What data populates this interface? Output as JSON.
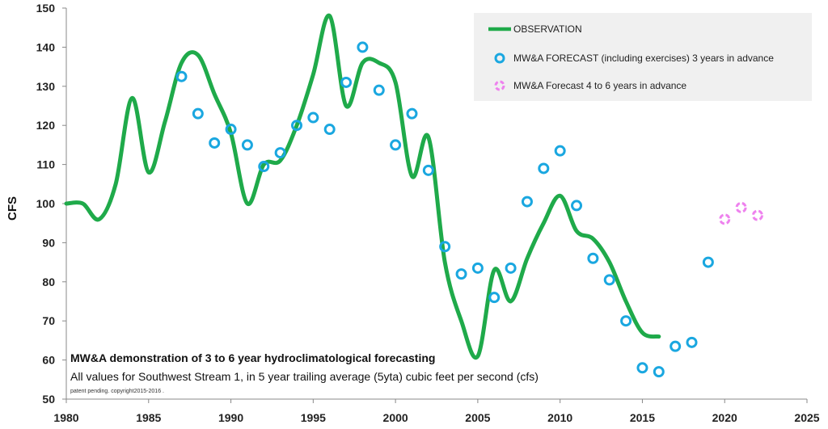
{
  "chart_data": {
    "type": "line",
    "xlabel": "",
    "ylabel": "CFS",
    "xlim": [
      1980,
      2025
    ],
    "ylim": [
      50,
      150
    ],
    "x_ticks": [
      "1980",
      "1985",
      "1990",
      "1995",
      "2000",
      "2005",
      "2010",
      "2015",
      "2020",
      "2025"
    ],
    "y_ticks": [
      "50",
      "60",
      "70",
      "80",
      "90",
      "100",
      "110",
      "120",
      "130",
      "140",
      "150"
    ],
    "grid": false,
    "legend_position": "top-right",
    "series": [
      {
        "name": "OBSERVATION",
        "style": "line",
        "color": "#1faa4a",
        "points": [
          [
            1980,
            100
          ],
          [
            1981,
            100
          ],
          [
            1982,
            96
          ],
          [
            1983,
            105
          ],
          [
            1984,
            127
          ],
          [
            1985,
            108
          ],
          [
            1986,
            121
          ],
          [
            1987,
            136
          ],
          [
            1988,
            138
          ],
          [
            1989,
            128
          ],
          [
            1990,
            118
          ],
          [
            1991,
            100
          ],
          [
            1992,
            110
          ],
          [
            1993,
            111
          ],
          [
            1994,
            120
          ],
          [
            1995,
            133
          ],
          [
            1996,
            148
          ],
          [
            1997,
            125
          ],
          [
            1998,
            136
          ],
          [
            1999,
            136
          ],
          [
            2000,
            131
          ],
          [
            2001,
            107
          ],
          [
            2002,
            117
          ],
          [
            2003,
            85
          ],
          [
            2004,
            70
          ],
          [
            2005,
            61
          ],
          [
            2006,
            83
          ],
          [
            2007,
            75
          ],
          [
            2008,
            86
          ],
          [
            2009,
            95
          ],
          [
            2010,
            102
          ],
          [
            2011,
            93
          ],
          [
            2012,
            91
          ],
          [
            2013,
            85
          ],
          [
            2014,
            75
          ],
          [
            2015,
            67
          ],
          [
            2016,
            66
          ]
        ]
      },
      {
        "name": "MW&A FORECAST (including exercises) 3 years in advance",
        "style": "circles",
        "color": "#1aa7e0",
        "points": [
          [
            1987,
            132.5
          ],
          [
            1988,
            123
          ],
          [
            1989,
            115.5
          ],
          [
            1990,
            119
          ],
          [
            1991,
            115
          ],
          [
            1992,
            109.5
          ],
          [
            1993,
            113
          ],
          [
            1994,
            120
          ],
          [
            1995,
            122
          ],
          [
            1996,
            119
          ],
          [
            1997,
            131
          ],
          [
            1998,
            140
          ],
          [
            1999,
            129
          ],
          [
            2000,
            115
          ],
          [
            2001,
            123
          ],
          [
            2002,
            108.5
          ],
          [
            2003,
            89
          ],
          [
            2004,
            82
          ],
          [
            2005,
            83.5
          ],
          [
            2006,
            76
          ],
          [
            2007,
            83.5
          ],
          [
            2008,
            100.5
          ],
          [
            2009,
            109
          ],
          [
            2010,
            113.5
          ],
          [
            2011,
            99.5
          ],
          [
            2012,
            86
          ],
          [
            2013,
            80.5
          ],
          [
            2014,
            70
          ],
          [
            2015,
            58
          ],
          [
            2016,
            57
          ],
          [
            2017,
            63.5
          ],
          [
            2018,
            64.5
          ],
          [
            2019,
            85
          ]
        ]
      },
      {
        "name": "MW&A Forecast 4 to 6 years in advance",
        "style": "dashed-circles",
        "color": "#ee82ee",
        "points": [
          [
            2020,
            96
          ],
          [
            2021,
            99
          ],
          [
            2022,
            97
          ]
        ]
      }
    ],
    "annotations": [
      "MW&A demonstration of  3 to 6 year hydroclimatological forecasting",
      "All values for Southwest Stream 1, in 5 year trailing average (5yta) cubic feet per second (cfs)",
      "patent pending.  copyright2015-2016  ."
    ]
  }
}
